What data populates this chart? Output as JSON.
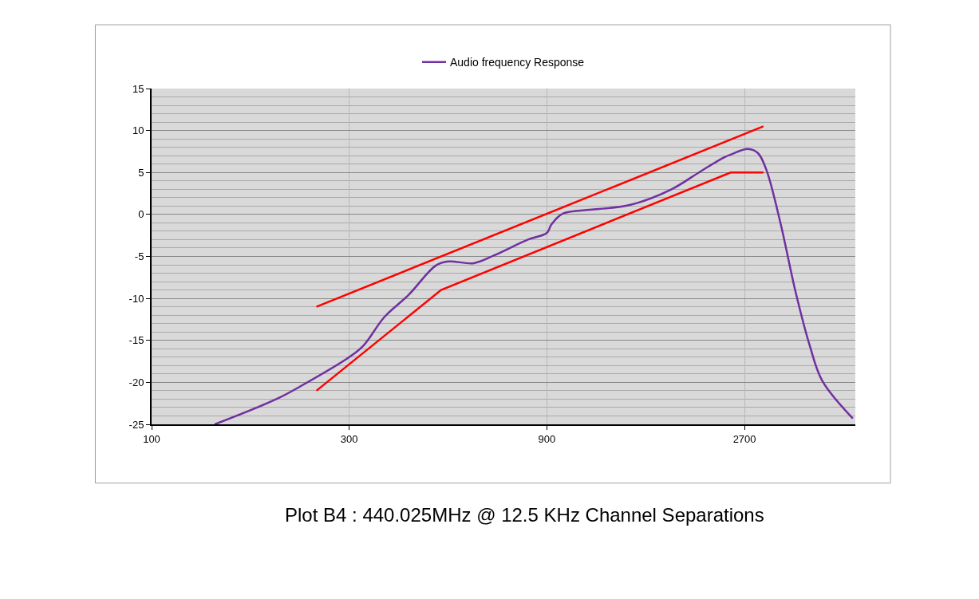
{
  "chart_data": {
    "type": "line",
    "log": "x",
    "grid": true,
    "legend": "top",
    "marker": "none",
    "xlim": [
      100,
      5000
    ],
    "xticks": [
      100,
      300,
      900,
      2700
    ],
    "ylim": [
      -25,
      15
    ],
    "yticks": [
      -25,
      -20,
      -15,
      -10,
      -5,
      0,
      5,
      10,
      15
    ],
    "series": [
      {
        "name": "Audio frequency Response",
        "color": "#7030a0",
        "x": [
          142,
          200,
          232,
          300,
          325,
          365,
          417,
          485,
          520,
          600,
          670,
          810,
          900,
          923,
          983,
          1170,
          1420,
          1800,
          2110,
          2410,
          2520,
          2750,
          2910,
          3050,
          3290,
          3590,
          3880,
          4160,
          4930
        ],
        "values": [
          -25,
          -22,
          -20.3,
          -17,
          -15.6,
          -12.2,
          -9.6,
          -6.1,
          -5.6,
          -5.8,
          -4.9,
          -3,
          -2.2,
          -1.2,
          0.1,
          0.6,
          1.1,
          3,
          5.1,
          6.8,
          7.2,
          7.8,
          7.3,
          5.3,
          -0.8,
          -9.3,
          -15.6,
          -19.8,
          -24.3
        ]
      },
      {
        "color": "#ff0000",
        "x": [
          250,
          3000
        ],
        "values": [
          -11,
          10.5
        ]
      },
      {
        "color": "#ff0000",
        "x": [
          250,
          500,
          2500,
          3000
        ],
        "values": [
          -21,
          -9,
          5,
          5
        ]
      }
    ],
    "annotations": [
      "Plot B4 : 440.025MHz @ 12.5 KHz Channel Separations"
    ]
  }
}
